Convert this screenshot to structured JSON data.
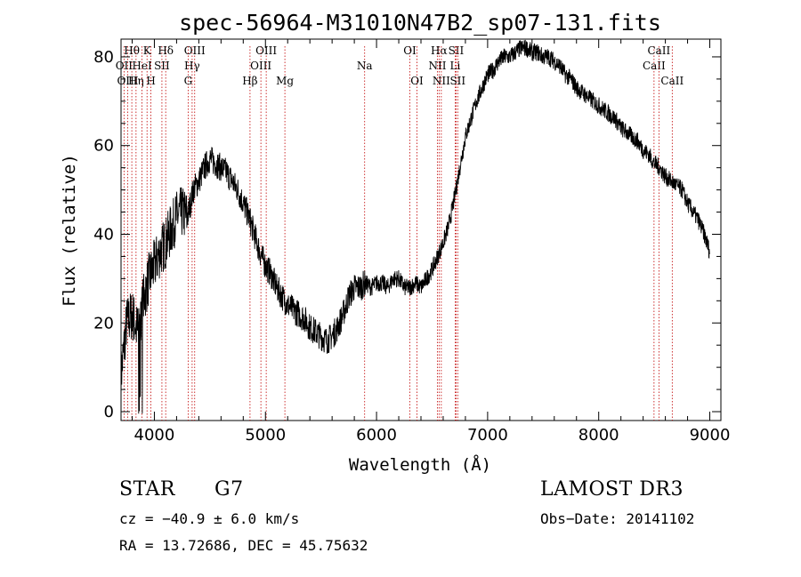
{
  "chart_data": {
    "type": "line",
    "title": "spec-56964-M31010N47B2_sp07-131.fits",
    "xlabel": "Wavelength (Å)",
    "ylabel": "Flux (relative)",
    "xlim": [
      3700,
      9100
    ],
    "ylim": [
      -2,
      84
    ],
    "xticks": [
      4000,
      5000,
      6000,
      7000,
      8000,
      9000
    ],
    "yticks": [
      0,
      20,
      40,
      60,
      80
    ],
    "series": [
      {
        "name": "flux",
        "x": [
          3700,
          3750,
          3800,
          3850,
          3900,
          3950,
          4000,
          4050,
          4100,
          4150,
          4200,
          4250,
          4300,
          4350,
          4400,
          4450,
          4500,
          4550,
          4600,
          4650,
          4700,
          4750,
          4800,
          4850,
          4900,
          4950,
          5000,
          5050,
          5100,
          5150,
          5200,
          5250,
          5300,
          5350,
          5400,
          5450,
          5500,
          5550,
          5600,
          5650,
          5700,
          5750,
          5800,
          5850,
          5900,
          5950,
          6000,
          6050,
          6100,
          6150,
          6200,
          6250,
          6300,
          6350,
          6400,
          6450,
          6500,
          6550,
          6600,
          6650,
          6700,
          6750,
          6800,
          6850,
          6900,
          6950,
          7000,
          7050,
          7100,
          7150,
          7200,
          7250,
          7300,
          7350,
          7400,
          7450,
          7500,
          7550,
          7600,
          7650,
          7700,
          7750,
          7800,
          7850,
          7900,
          7950,
          8000,
          8050,
          8100,
          8150,
          8200,
          8250,
          8300,
          8350,
          8400,
          8450,
          8500,
          8550,
          8600,
          8650,
          8700,
          8750,
          8800,
          8850,
          8900,
          8950,
          9000
        ],
        "values": [
          8,
          20,
          22,
          18,
          25,
          30,
          33,
          36,
          38,
          41,
          44,
          45,
          44,
          50,
          52,
          55,
          57,
          56,
          55,
          54,
          52,
          50,
          47,
          44,
          40,
          36,
          33,
          31,
          28,
          26,
          24,
          23,
          22,
          21,
          19,
          18,
          17,
          16,
          17,
          19,
          22,
          26,
          28,
          28,
          29,
          28,
          29,
          29,
          28,
          30,
          30,
          28,
          28,
          29,
          28,
          30,
          32,
          35,
          38,
          42,
          48,
          55,
          62,
          66,
          70,
          73,
          76,
          77,
          79,
          80,
          80,
          81,
          82,
          82,
          81,
          81,
          80,
          80,
          79,
          78,
          76,
          75,
          73,
          72,
          71,
          70,
          69,
          68,
          67,
          66,
          64,
          63,
          62,
          61,
          59,
          58,
          56,
          55,
          53,
          52,
          51,
          50,
          47,
          45,
          43,
          40,
          36
        ]
      }
    ],
    "lines": [
      {
        "label": "Hθ",
        "x": 3797,
        "row": 0
      },
      {
        "label": "OII",
        "x": 3727,
        "row": 1
      },
      {
        "label": "OIII",
        "x": 3760,
        "row": 2
      },
      {
        "label": "Hη",
        "x": 3835,
        "row": 2
      },
      {
        "label": "HeI",
        "x": 3889,
        "row": 1
      },
      {
        "label": "K",
        "x": 3934,
        "row": 0
      },
      {
        "label": "H",
        "x": 3969,
        "row": 2
      },
      {
        "label": "SII",
        "x": 4068,
        "row": 1
      },
      {
        "label": "Hδ",
        "x": 4102,
        "row": 0
      },
      {
        "label": "OIII",
        "x": 4363,
        "row": 0
      },
      {
        "label": "Hγ",
        "x": 4340,
        "row": 1
      },
      {
        "label": "G",
        "x": 4304,
        "row": 2
      },
      {
        "label": "Hβ",
        "x": 4861,
        "row": 2
      },
      {
        "label": "OIII",
        "x": 4959,
        "row": 1
      },
      {
        "label": "OIII",
        "x": 5007,
        "row": 0
      },
      {
        "label": "Mg",
        "x": 5175,
        "row": 2
      },
      {
        "label": "Na",
        "x": 5893,
        "row": 1
      },
      {
        "label": "OI",
        "x": 6300,
        "row": 0
      },
      {
        "label": "OI",
        "x": 6364,
        "row": 2
      },
      {
        "label": "NII",
        "x": 6548,
        "row": 1
      },
      {
        "label": "Hα",
        "x": 6563,
        "row": 0
      },
      {
        "label": "NII",
        "x": 6583,
        "row": 2
      },
      {
        "label": "SII",
        "x": 6716,
        "row": 0
      },
      {
        "label": "Li",
        "x": 6708,
        "row": 1
      },
      {
        "label": "SII",
        "x": 6731,
        "row": 2
      },
      {
        "label": "CaII",
        "x": 8498,
        "row": 1
      },
      {
        "label": "CaII",
        "x": 8542,
        "row": 0
      },
      {
        "label": "CaII",
        "x": 8662,
        "row": 2
      }
    ]
  },
  "info": {
    "class": "STAR",
    "subclass": "G7",
    "survey": "LAMOST DR3",
    "cz": "cz = −40.9 ± 6.0 km/s",
    "obs_date": "Obs−Date: 20141102",
    "radec": "RA =  13.72686, DEC =  45.75632"
  }
}
